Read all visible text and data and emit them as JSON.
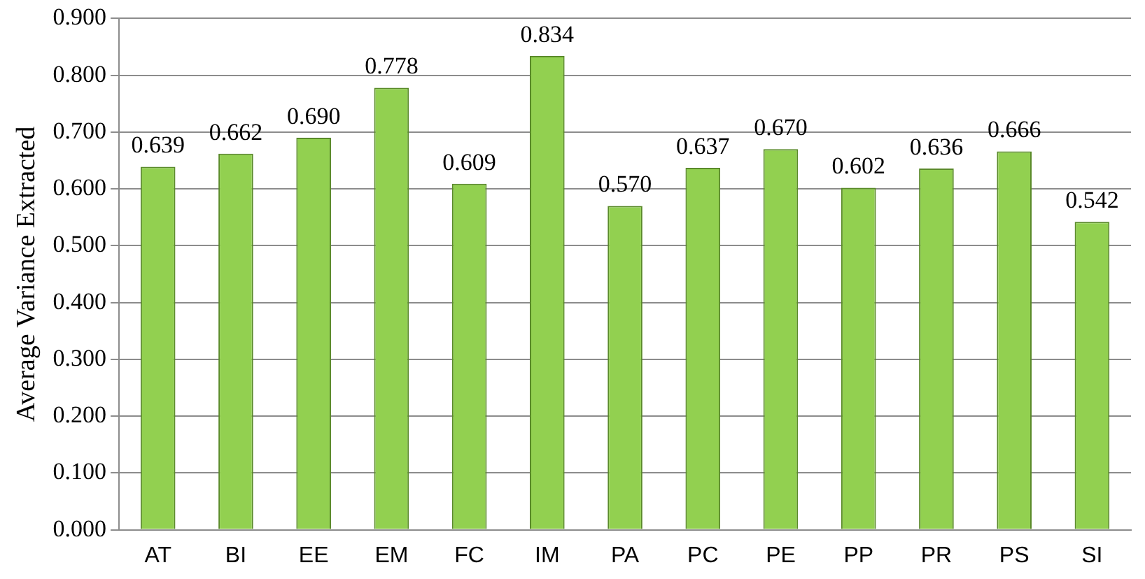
{
  "chart_data": {
    "type": "bar",
    "ylabel": "Average Variance Extracted",
    "categories": [
      "AT",
      "BI",
      "EE",
      "EM",
      "FC",
      "IM",
      "PA",
      "PC",
      "PE",
      "PP",
      "PR",
      "PS",
      "SI"
    ],
    "values": [
      0.639,
      0.662,
      0.69,
      0.778,
      0.609,
      0.834,
      0.57,
      0.637,
      0.67,
      0.602,
      0.636,
      0.666,
      0.542
    ],
    "value_labels": [
      "0.639",
      "0.662",
      "0.690",
      "0.778",
      "0.609",
      "0.834",
      "0.570",
      "0.637",
      "0.670",
      "0.602",
      "0.636",
      "0.666",
      "0.542"
    ],
    "color": "#92d050",
    "ylim": [
      0,
      0.9
    ],
    "yticks": [
      {
        "value": 0,
        "label": "0.000"
      },
      {
        "value": 0.1,
        "label": "0.100"
      },
      {
        "value": 0.2,
        "label": "0.200"
      },
      {
        "value": 0.3,
        "label": "0.300"
      },
      {
        "value": 0.4,
        "label": "0.400"
      },
      {
        "value": 0.5,
        "label": "0.500"
      },
      {
        "value": 0.6,
        "label": "0.600"
      },
      {
        "value": 0.7,
        "label": "0.700"
      },
      {
        "value": 0.8,
        "label": "0.800"
      },
      {
        "value": 0.9,
        "label": "0.900"
      }
    ],
    "grid": "y"
  }
}
